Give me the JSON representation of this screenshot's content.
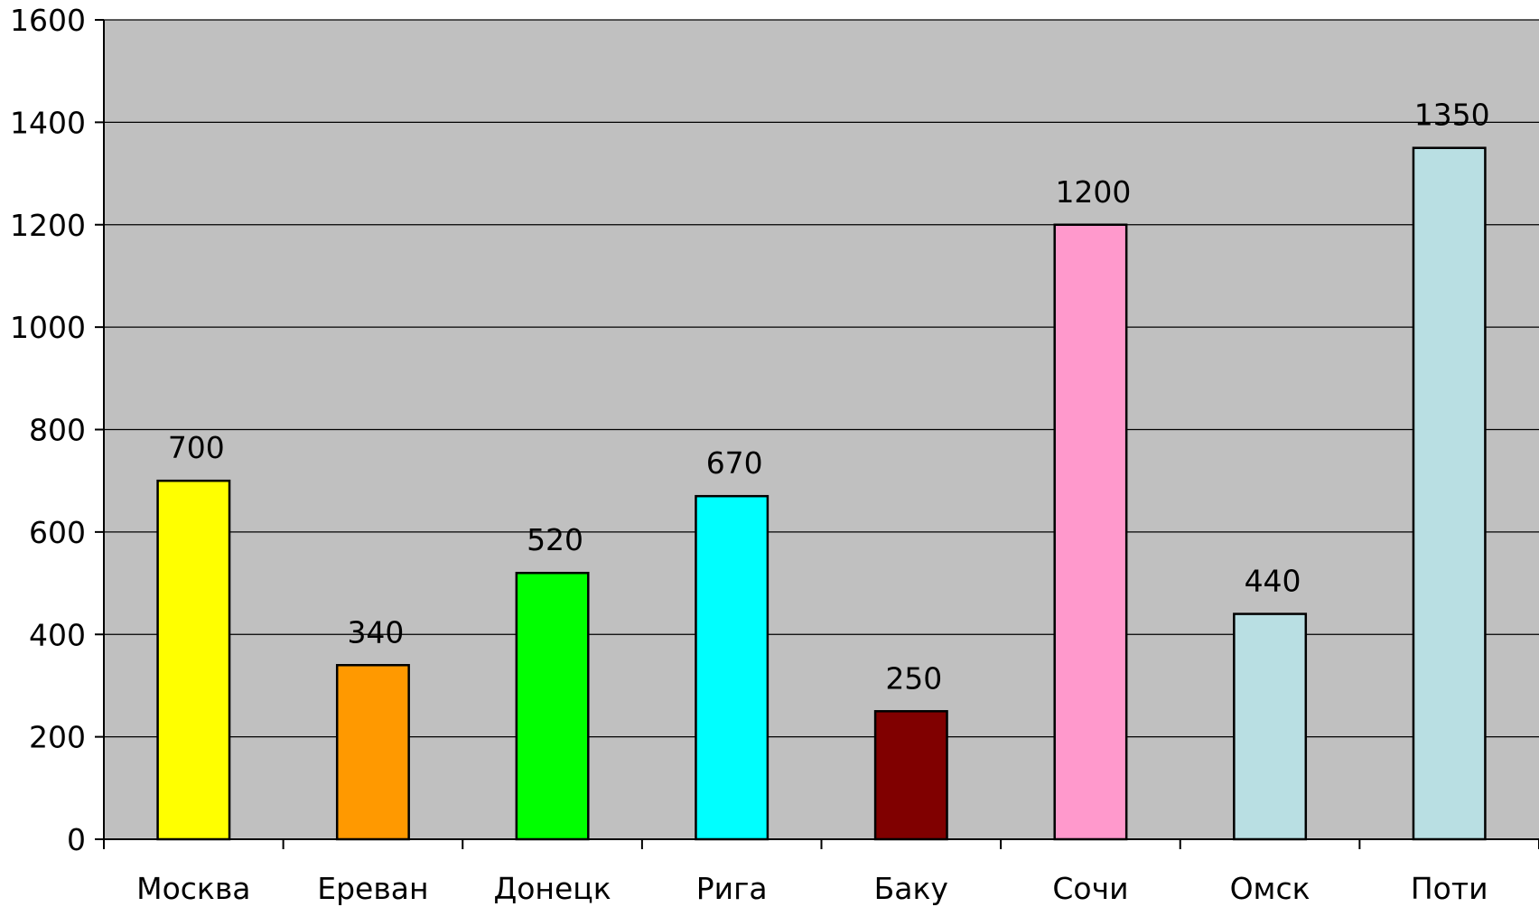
{
  "chart_data": {
    "type": "bar",
    "title": "",
    "xlabel": "",
    "ylabel": "",
    "categories": [
      "Москва",
      "Ереван",
      "Донецк",
      "Рига",
      "Баку",
      "Сочи",
      "Омск",
      "Поти"
    ],
    "values": [
      700,
      340,
      520,
      670,
      250,
      1200,
      440,
      1350
    ],
    "data_labels": [
      "700",
      "340",
      "520",
      "670",
      "250",
      "1200",
      "440",
      "1350"
    ],
    "bar_colors": [
      "#ffff00",
      "#ff9900",
      "#00ff00",
      "#00ffff",
      "#800000",
      "#ff99cc",
      "#b9dfe3",
      "#b9dfe3"
    ],
    "ylim": [
      0,
      1600
    ],
    "yticks": [
      0,
      200,
      400,
      600,
      800,
      1000,
      1200,
      1400,
      1600
    ],
    "ytick_labels": [
      "0",
      "200",
      "400",
      "600",
      "800",
      "1000",
      "1200",
      "1400",
      "1600"
    ],
    "grid": true,
    "legend": "none",
    "plot_background": "#c0c0c0",
    "bar_edge_color": "#000000"
  }
}
